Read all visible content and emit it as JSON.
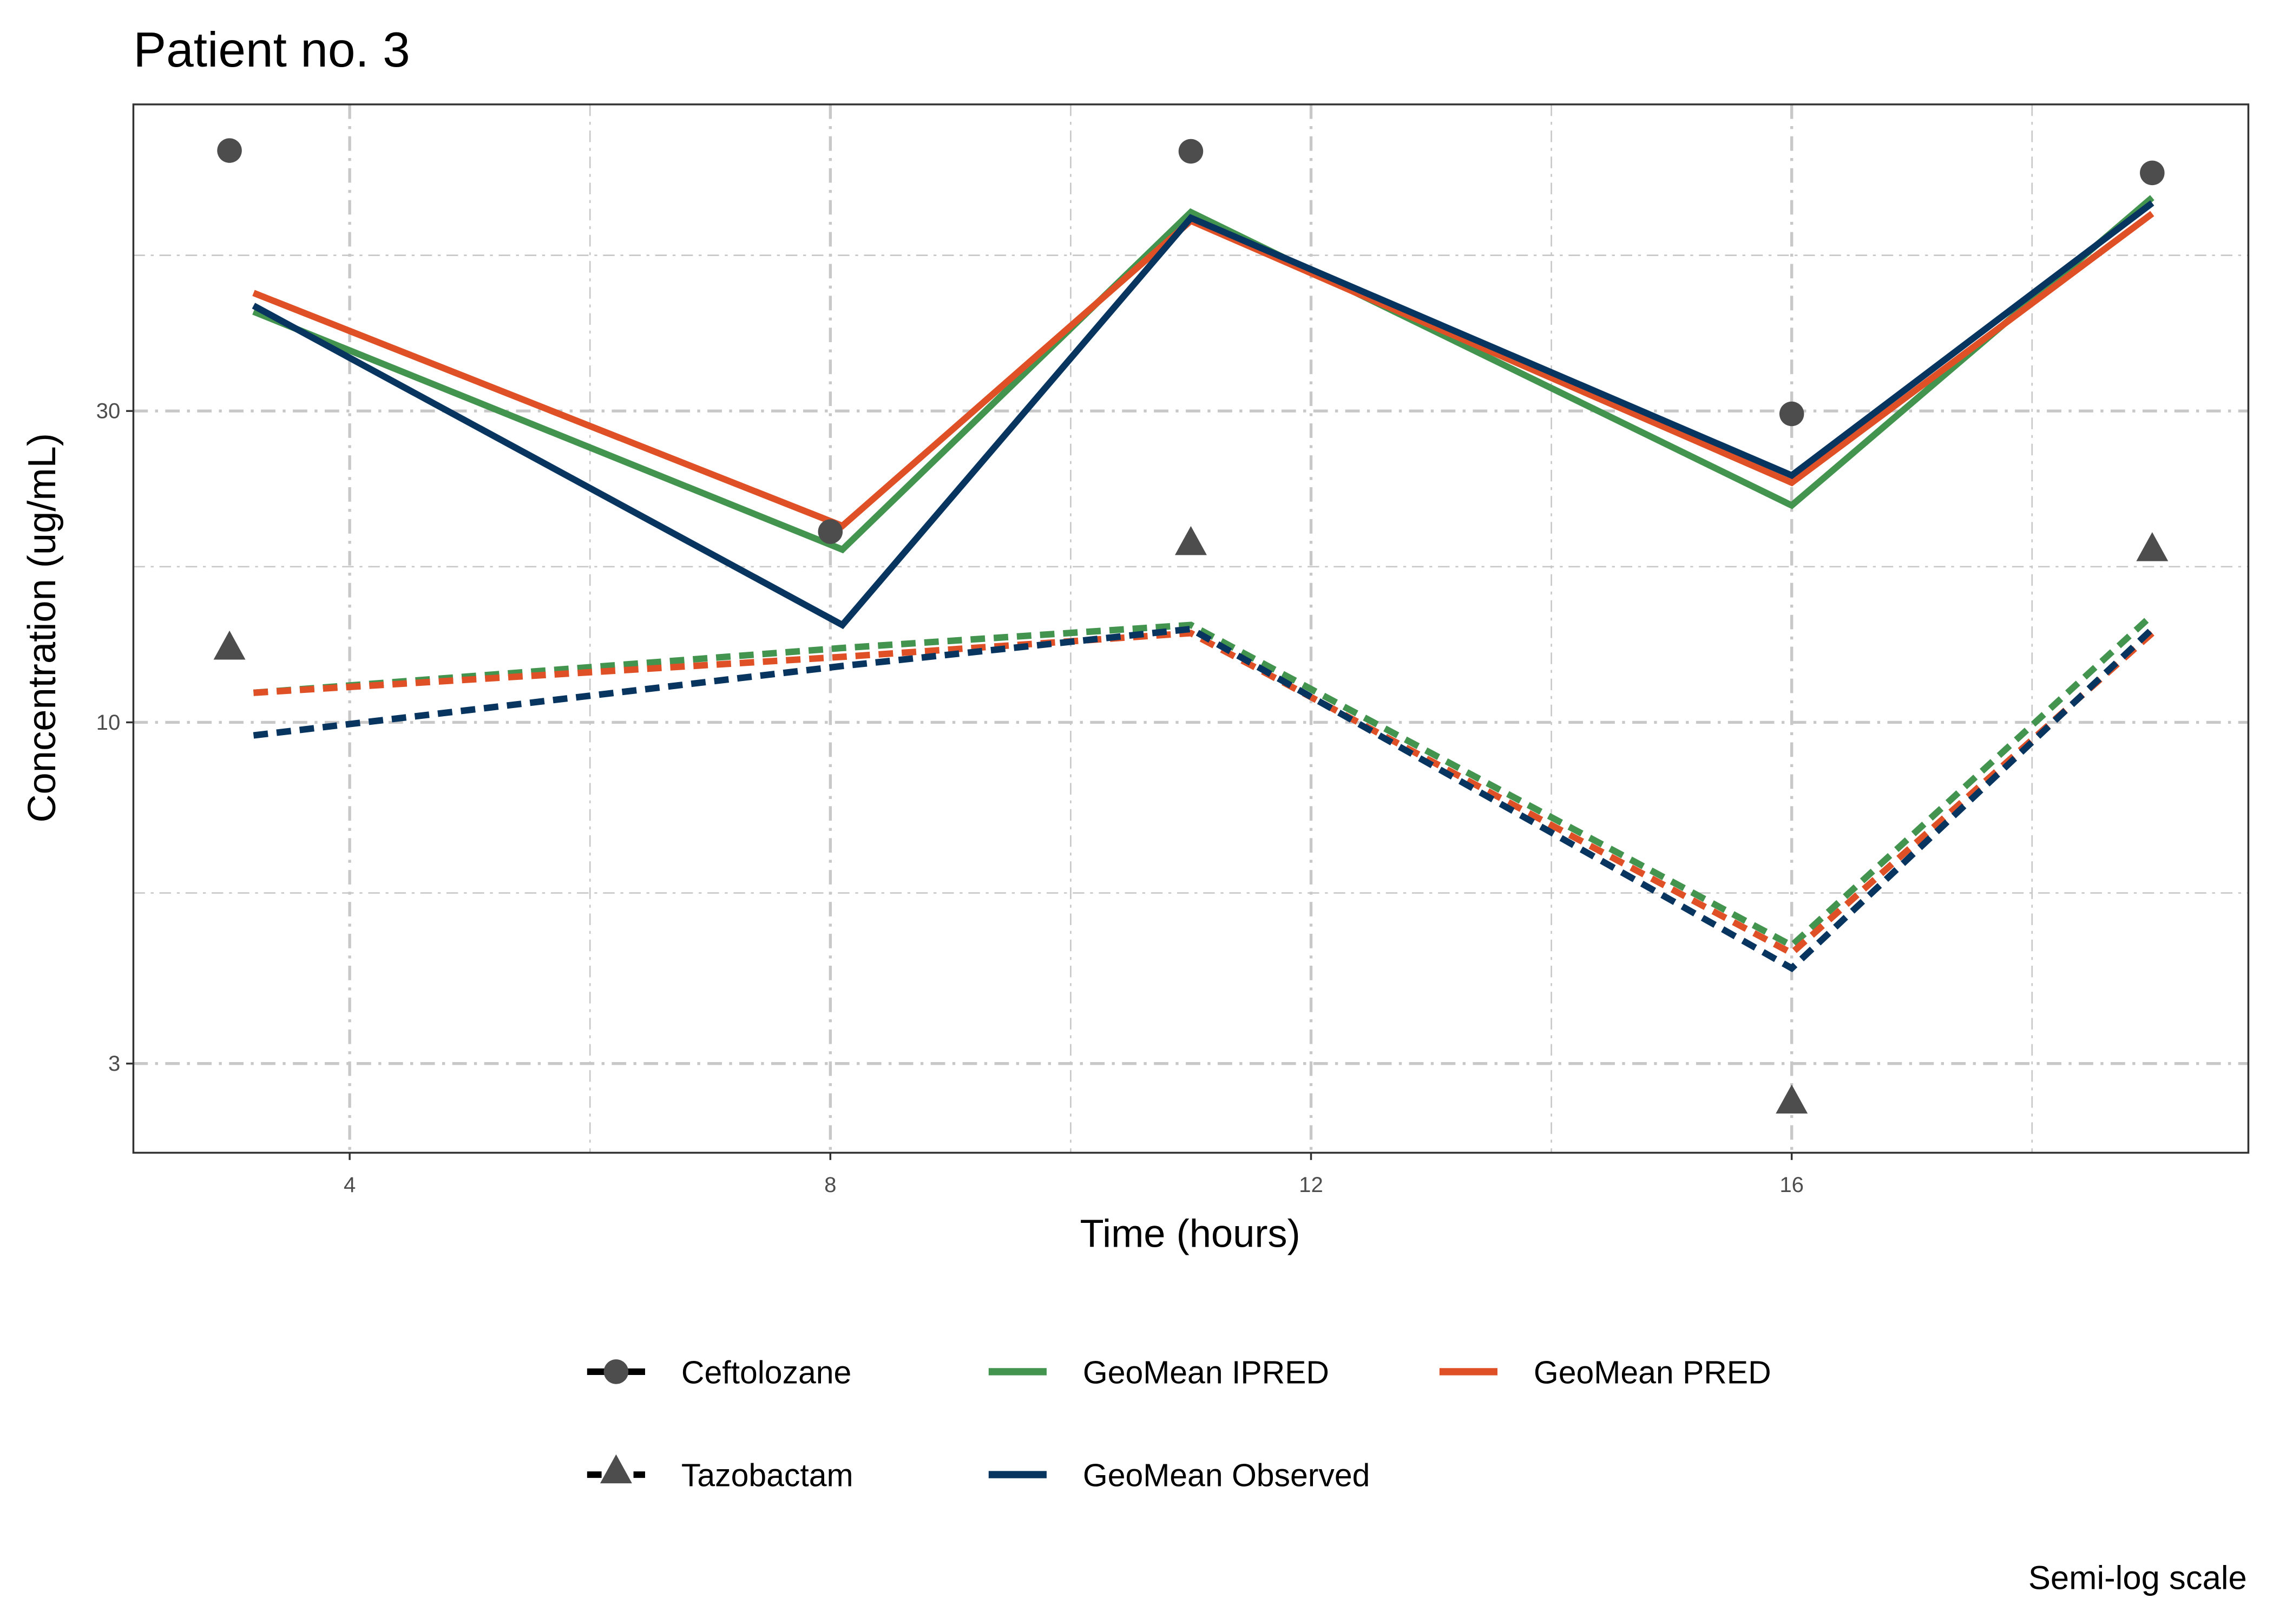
{
  "chart_data": {
    "type": "line",
    "title": "Patient no. 3",
    "xlabel": "Time (hours)",
    "ylabel": "Concentration (ug/mL)",
    "caption": "Semi-log scale",
    "xlim": [
      2.2,
      19.8
    ],
    "ylim": [
      2.19,
      88.5
    ],
    "yscale": "log",
    "x_ticks": [
      4,
      8,
      12,
      16
    ],
    "y_ticks": [
      3,
      10,
      30
    ],
    "grid": true,
    "legend_position": "bottom",
    "observed_points": [
      {
        "drug": "Ceftolozane",
        "shape": "circle",
        "x": [
          3,
          8,
          11,
          16,
          19
        ],
        "y": [
          75.2,
          19.6,
          75.0,
          29.7,
          69.5
        ]
      },
      {
        "drug": "Tazobactam",
        "shape": "triangle",
        "x": [
          3,
          11,
          16,
          19
        ],
        "y": [
          13.0,
          18.8,
          2.62,
          18.4
        ]
      }
    ],
    "series": [
      {
        "name": "GeoMean IPRED",
        "drug": "Ceftolozane",
        "color": "#43944F",
        "dash": "solid",
        "x": [
          3.2,
          8.1,
          11,
          16,
          19
        ],
        "y": [
          42.6,
          18.4,
          60.5,
          21.5,
          63.7
        ]
      },
      {
        "name": "GeoMean PRED",
        "drug": "Ceftolozane",
        "color": "#E05026",
        "dash": "solid",
        "x": [
          3.2,
          8.1,
          11,
          16,
          19
        ],
        "y": [
          45.5,
          20.0,
          58.7,
          23.3,
          60.2
        ]
      },
      {
        "name": "GeoMean Observed",
        "drug": "Ceftolozane",
        "color": "#08355F",
        "dash": "solid",
        "x": [
          3.2,
          8.1,
          11,
          16,
          19
        ],
        "y": [
          43.5,
          14.1,
          59.3,
          23.9,
          62.5
        ]
      },
      {
        "name": "GeoMean IPRED",
        "drug": "Tazobactam",
        "color": "#43944F",
        "dash": "dashed",
        "x": [
          3.2,
          8.1,
          11,
          16,
          19
        ],
        "y": [
          11.1,
          13.0,
          14.1,
          4.55,
          14.6
        ]
      },
      {
        "name": "GeoMean PRED",
        "drug": "Tazobactam",
        "color": "#E05026",
        "dash": "dashed",
        "x": [
          3.2,
          8.1,
          11,
          16,
          19
        ],
        "y": [
          11.1,
          12.6,
          13.7,
          4.43,
          13.7
        ]
      },
      {
        "name": "GeoMean Observed",
        "drug": "Tazobactam",
        "color": "#08355F",
        "dash": "dashed",
        "x": [
          3.2,
          8.1,
          11,
          16,
          19
        ],
        "y": [
          9.55,
          12.2,
          13.9,
          4.2,
          13.9
        ]
      }
    ],
    "legend": {
      "drugs": [
        {
          "label": "Ceftolozane",
          "shape": "circle",
          "dash": "solid"
        },
        {
          "label": "Tazobactam",
          "shape": "triangle",
          "dash": "dashed"
        }
      ],
      "lines": [
        {
          "label": "GeoMean IPRED",
          "color": "#43944F"
        },
        {
          "label": "GeoMean PRED",
          "color": "#E05026"
        },
        {
          "label": "GeoMean Observed",
          "color": "#08355F"
        }
      ]
    }
  }
}
